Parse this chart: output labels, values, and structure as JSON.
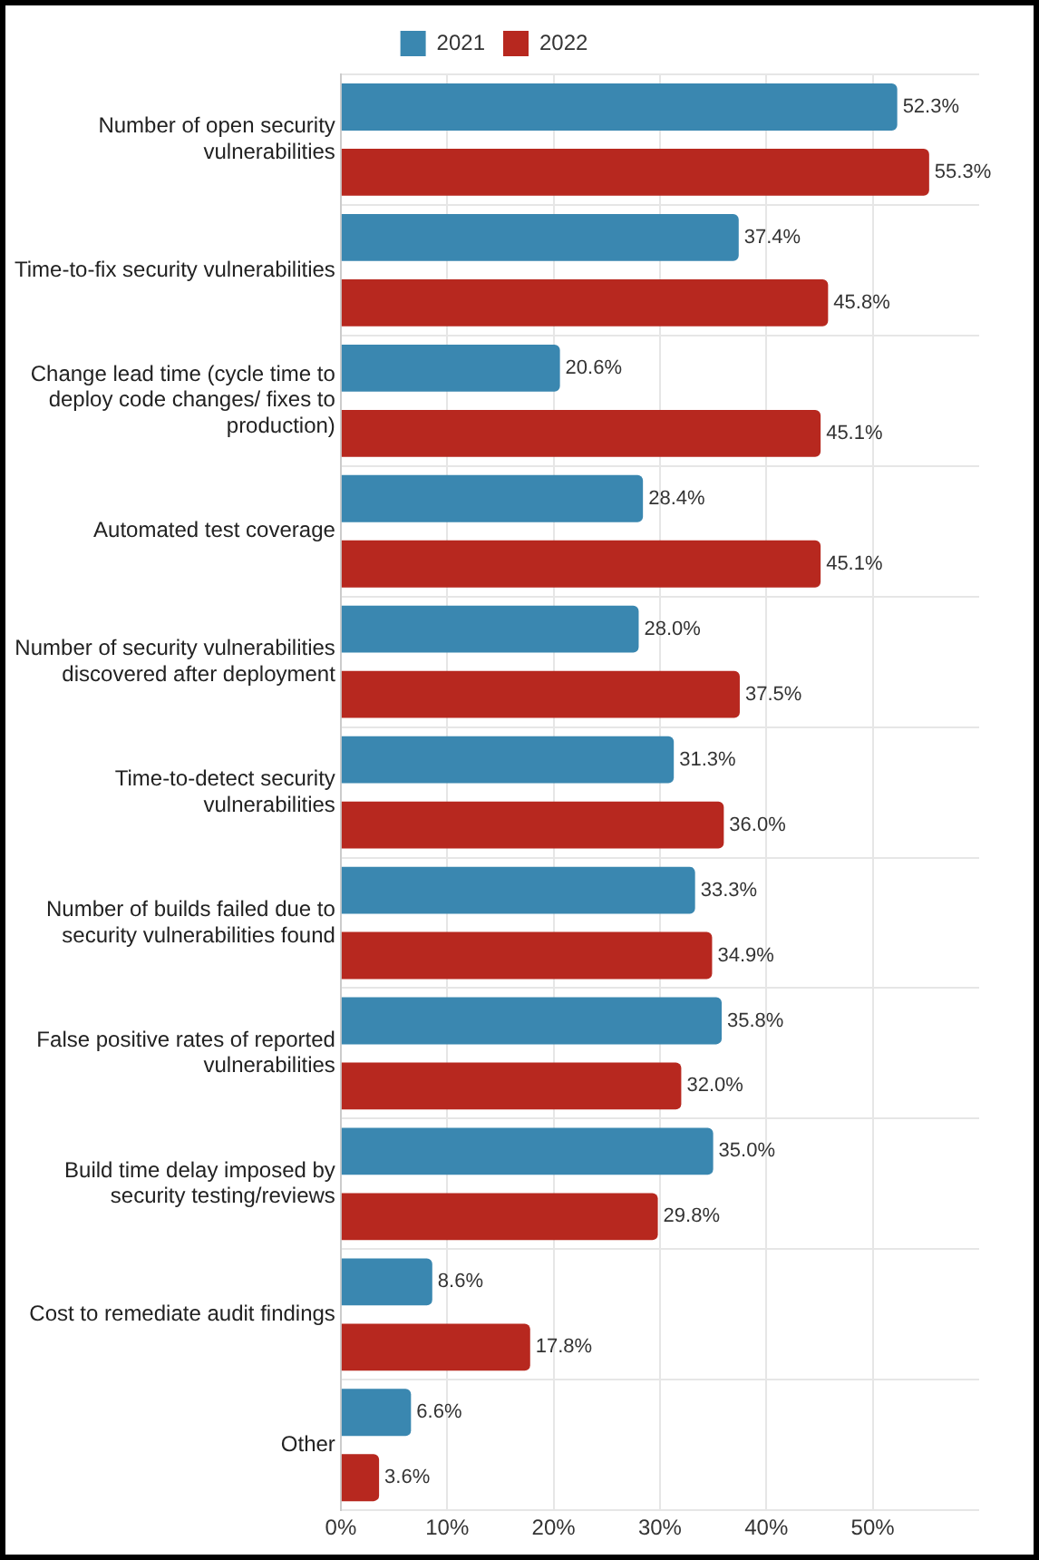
{
  "chart_data": {
    "type": "bar",
    "orientation": "horizontal",
    "categories": [
      "Number of open security vulnerabilities",
      "Time-to-fix security vulnerabilities",
      "Change lead time (cycle time to deploy code changes/ fixes to production)",
      "Automated test coverage",
      "Number of security vulnerabilities discovered after deployment",
      "Time-to-detect security vulnerabilities",
      "Number of builds failed due to security vulnerabilities found",
      "False positive rates of reported vulnerabilities",
      "Build time delay imposed by security testing/reviews",
      "Cost to remediate audit findings",
      "Other"
    ],
    "series": [
      {
        "name": "2021",
        "color": "#3a87b0",
        "values": [
          52.3,
          37.4,
          20.6,
          28.4,
          28.0,
          31.3,
          33.3,
          35.8,
          35.0,
          8.6,
          6.6
        ],
        "value_labels": [
          "52.3%",
          "37.4%",
          "20.6%",
          "28.4%",
          "28.0%",
          "31.3%",
          "33.3%",
          "35.8%",
          "35.0%",
          "8.6%",
          "6.6%"
        ]
      },
      {
        "name": "2022",
        "color": "#b7281f",
        "values": [
          55.3,
          45.8,
          45.1,
          45.1,
          37.5,
          36.0,
          34.9,
          32.0,
          29.8,
          17.8,
          3.6
        ],
        "value_labels": [
          "55.3%",
          "45.8%",
          "45.1%",
          "45.1%",
          "37.5%",
          "36.0%",
          "34.9%",
          "32.0%",
          "29.8%",
          "17.8%",
          "3.6%"
        ]
      }
    ],
    "xlim": [
      0,
      60
    ],
    "xticks": [
      {
        "value": 0,
        "label": "0%"
      },
      {
        "value": 10,
        "label": "10%"
      },
      {
        "value": 20,
        "label": "20%"
      },
      {
        "value": 30,
        "label": "30%"
      },
      {
        "value": 40,
        "label": "40%"
      },
      {
        "value": 50,
        "label": "50%"
      }
    ],
    "grid": true,
    "legend": "top"
  }
}
